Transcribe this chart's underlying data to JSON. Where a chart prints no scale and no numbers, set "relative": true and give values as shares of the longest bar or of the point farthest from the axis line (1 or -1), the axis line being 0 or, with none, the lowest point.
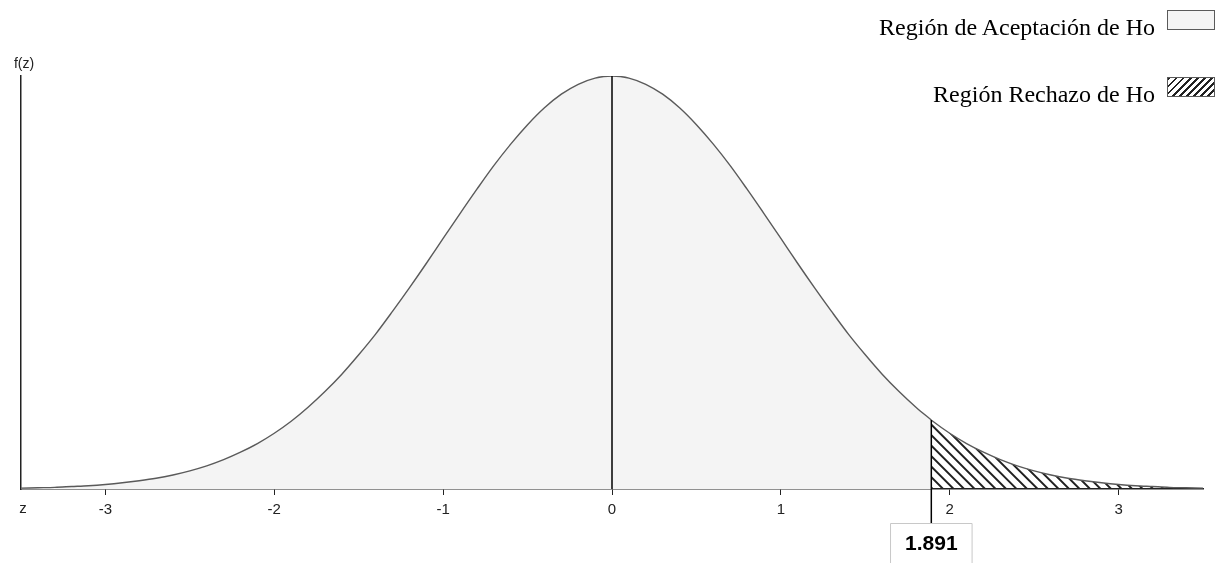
{
  "chart_data": {
    "type": "area",
    "xlabel": "z",
    "ylabel": "f(z)",
    "relative": true,
    "xlim": [
      -3.5,
      3.5
    ],
    "xticks": [
      -3,
      -2,
      -1,
      0,
      1,
      2,
      3
    ],
    "legend": "top right",
    "series": [
      {
        "name": "Región de Aceptación de Ho",
        "color": "#f4f4f4",
        "x": [
          -3.5,
          -3.4,
          -3.3,
          -3.2,
          -3.1,
          -3,
          -2.9,
          -2.8,
          -2.7,
          -2.6,
          -2.5,
          -2.4,
          -2.3,
          -2.2,
          -2.1,
          -2,
          -1.9,
          -1.8,
          -1.7,
          -1.6,
          -1.5,
          -1.4,
          -1.3,
          -1.2,
          -1.1,
          -1,
          -0.9,
          -0.8,
          -0.7,
          -0.6,
          -0.5,
          -0.4,
          -0.3,
          -0.2,
          -0.1,
          0,
          0.1,
          0.2,
          0.3,
          0.4,
          0.5,
          0.6,
          0.7,
          0.8,
          0.9,
          1,
          1.1,
          1.2,
          1.3,
          1.4,
          1.5,
          1.6,
          1.7,
          1.8,
          1.891
        ],
        "values": [
          0.002,
          0.003,
          0.004,
          0.006,
          0.008,
          0.011,
          0.015,
          0.02,
          0.026,
          0.034,
          0.044,
          0.056,
          0.071,
          0.089,
          0.11,
          0.135,
          0.164,
          0.198,
          0.236,
          0.278,
          0.325,
          0.375,
          0.43,
          0.487,
          0.546,
          0.607,
          0.667,
          0.726,
          0.783,
          0.835,
          0.882,
          0.923,
          0.956,
          0.98,
          0.995,
          1,
          0.995,
          0.98,
          0.956,
          0.923,
          0.882,
          0.835,
          0.783,
          0.726,
          0.667,
          0.607,
          0.546,
          0.487,
          0.43,
          0.375,
          0.325,
          0.278,
          0.236,
          0.198,
          0.167
        ]
      },
      {
        "name": "Región Rechazo de Ho",
        "color": "#222222",
        "x": [
          1.891,
          1.9,
          2,
          2.1,
          2.2,
          2.3,
          2.4,
          2.5,
          2.6,
          2.7,
          2.8,
          2.9,
          3,
          3.1,
          3.2,
          3.3,
          3.4,
          3.5
        ],
        "values": [
          0.167,
          0.164,
          0.135,
          0.11,
          0.089,
          0.071,
          0.056,
          0.044,
          0.034,
          0.026,
          0.02,
          0.015,
          0.011,
          0.008,
          0.006,
          0.004,
          0.003,
          0.002
        ]
      }
    ],
    "ref_lines": [
      {
        "axis": "x",
        "value": 0
      },
      {
        "axis": "x",
        "value": 1.891,
        "label": "1.891"
      }
    ]
  }
}
